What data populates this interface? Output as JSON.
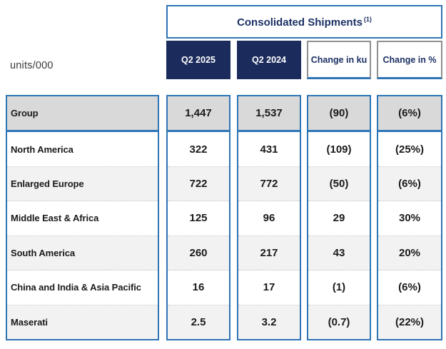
{
  "units_label": "units/000",
  "table": {
    "title": "Consolidated Shipments",
    "title_note": "(1)",
    "columns": {
      "q2_2025": "Q2 2025",
      "q2_2024": "Q2 2024",
      "change_ku": "Change in ku",
      "change_pct": "Change in %"
    },
    "rows": [
      {
        "label": "Group",
        "q2_2025": "1,447",
        "q2_2024": "1,537",
        "change_ku": "(90)",
        "change_pct": "(6%)"
      },
      {
        "label": "North America",
        "q2_2025": "322",
        "q2_2024": "431",
        "change_ku": "(109)",
        "change_pct": "(25%)"
      },
      {
        "label": "Enlarged Europe",
        "q2_2025": "722",
        "q2_2024": "772",
        "change_ku": "(50)",
        "change_pct": "(6%)"
      },
      {
        "label": "Middle East & Africa",
        "q2_2025": "125",
        "q2_2024": "96",
        "change_ku": "29",
        "change_pct": "30%"
      },
      {
        "label": "South America",
        "q2_2025": "260",
        "q2_2024": "217",
        "change_ku": "43",
        "change_pct": "20%"
      },
      {
        "label": "China and India & Asia Pacific",
        "q2_2025": "16",
        "q2_2024": "17",
        "change_ku": "(1)",
        "change_pct": "(6%)"
      },
      {
        "label": "Maserati",
        "q2_2025": "2.5",
        "q2_2024": "3.2",
        "change_ku": "(0.7)",
        "change_pct": "(22%)"
      }
    ]
  },
  "colors": {
    "navy": "#1b2b5c",
    "navy_text": "#1c3064",
    "border_blue": "#2e75b6",
    "group_row_bg": "#d9d9d9",
    "stripe_bg": "#f2f2f2",
    "header_gray_border": "#8f8f8f"
  }
}
